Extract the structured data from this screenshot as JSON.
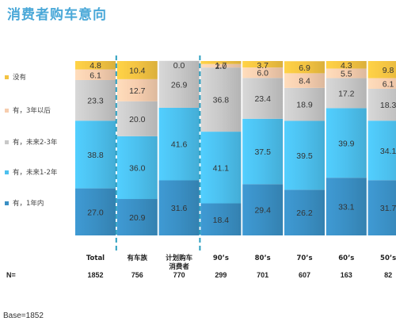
{
  "title": "消费者购车意向",
  "base_note": "Base=1852",
  "n_label": "N=",
  "colors": {
    "title": "#4aa8d8",
    "divider": "#2b9fc0",
    "series": [
      "#3a8fc4",
      "#4cc0ee",
      "#c8c8c8",
      "#f6cdae",
      "#f3c342"
    ]
  },
  "chart_data": {
    "type": "bar",
    "stacked": true,
    "normalized_percent": true,
    "title": "消费者购车意向",
    "categories": [
      "Total",
      "有车族",
      "计划购车\n消费者",
      "90’s",
      "80’s",
      "70’s",
      "60’s",
      "50’s"
    ],
    "n_values": [
      "1852",
      "756",
      "770",
      "299",
      "701",
      "607",
      "163",
      "82"
    ],
    "series": [
      {
        "name": "有，1年内",
        "values": [
          27.0,
          20.9,
          31.6,
          18.4,
          29.4,
          26.2,
          33.1,
          31.7
        ]
      },
      {
        "name": "有，未来1-2年",
        "values": [
          38.8,
          36.0,
          41.6,
          41.1,
          37.5,
          39.5,
          39.9,
          34.1
        ]
      },
      {
        "name": "有，未来2-3年",
        "values": [
          23.3,
          20.0,
          26.9,
          36.8,
          23.4,
          18.9,
          17.2,
          18.3
        ]
      },
      {
        "name": "有，3年以后",
        "values": [
          6.1,
          12.7,
          0.0,
          2.0,
          6.0,
          8.4,
          5.5,
          6.1
        ]
      },
      {
        "name": "没有",
        "values": [
          4.8,
          10.4,
          0.0,
          1.7,
          3.7,
          6.9,
          4.3,
          9.8
        ]
      }
    ],
    "value_labels": [
      [
        "27.0",
        "20.9",
        "31.6",
        "18.4",
        "29.4",
        "26.2",
        "33.1",
        "31.7"
      ],
      [
        "38.8",
        "36.0",
        "41.6",
        "41.1",
        "37.5",
        "39.5",
        "39.9",
        "34.1"
      ],
      [
        "23.3",
        "20.0",
        "26.9",
        "36.8",
        "23.4",
        "18.9",
        "17.2",
        "18.3"
      ],
      [
        "6.1",
        "12.7",
        "",
        "2.0",
        "6.0",
        "8.4",
        "5.5",
        "6.1"
      ],
      [
        "4.8",
        "10.4",
        "0.0",
        "1.7",
        "3.7",
        "6.9",
        "4.3",
        "9.8"
      ]
    ],
    "legend": [
      "没有",
      "有，3年以后",
      "有，未来2-3年",
      "有，未来1-2年",
      "有，1年内"
    ],
    "legend_position": "left",
    "dividers_after_categories": [
      "Total",
      "计划购车\n消费者"
    ]
  }
}
